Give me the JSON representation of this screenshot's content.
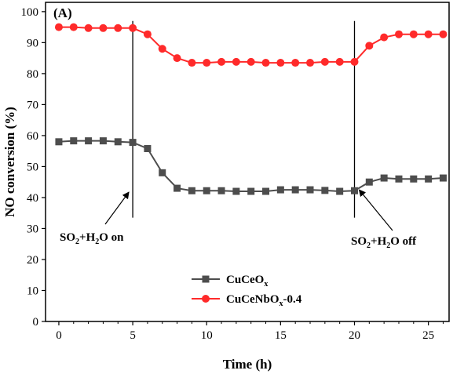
{
  "chart_data": {
    "type": "line",
    "panel_label": "(A)",
    "xlabel": "Time (h)",
    "ylabel": "NO conversion (%)",
    "xlim": [
      -0.9,
      26.4
    ],
    "ylim": [
      0,
      103
    ],
    "xticks": [
      0,
      5,
      10,
      15,
      20,
      25
    ],
    "yticks": [
      0,
      10,
      20,
      30,
      40,
      50,
      60,
      70,
      80,
      90,
      100
    ],
    "grid": false,
    "legend_position": "bottom-center",
    "series": [
      {
        "name": "CuCeOx",
        "legend_main": "CuCeO",
        "legend_sub": "x",
        "legend_suffix": "",
        "marker": "square",
        "color": "#4d4d4d",
        "x": [
          0,
          1,
          2,
          3,
          4,
          5,
          6,
          7,
          8,
          9,
          10,
          11,
          12,
          13,
          14,
          15,
          16,
          17,
          18,
          19,
          20,
          21,
          22,
          23,
          24,
          25,
          26
        ],
        "y": [
          58,
          58.3,
          58.3,
          58.3,
          58,
          57.8,
          55.8,
          48,
          43,
          42.2,
          42.2,
          42.2,
          42,
          42,
          42,
          42.5,
          42.5,
          42.5,
          42.3,
          42,
          42.2,
          45,
          46.3,
          46,
          46,
          46,
          46.3
        ]
      },
      {
        "name": "CuCeNbOx-0.4",
        "legend_main": "CuCeNbO",
        "legend_sub": "x",
        "legend_suffix": "-0.4",
        "marker": "circle",
        "color": "#ff2a2a",
        "x": [
          0,
          1,
          2,
          3,
          4,
          5,
          6,
          7,
          8,
          9,
          10,
          11,
          12,
          13,
          14,
          15,
          16,
          17,
          18,
          19,
          20,
          21,
          22,
          23,
          24,
          25,
          26
        ],
        "y": [
          95,
          95,
          94.7,
          94.7,
          94.7,
          94.7,
          92.7,
          88,
          85,
          83.5,
          83.5,
          83.8,
          83.8,
          83.8,
          83.5,
          83.5,
          83.5,
          83.5,
          83.8,
          83.8,
          83.8,
          89,
          91.7,
          92.7,
          92.7,
          92.7,
          92.7
        ]
      }
    ],
    "vlines": [
      5,
      20
    ],
    "annotations": [
      {
        "parts": [
          "SO",
          "2",
          "+H",
          "2",
          "O on"
        ],
        "point_x": 5,
        "point_y": 42.5
      },
      {
        "parts": [
          "SO",
          "2",
          "+H",
          "2",
          "O off"
        ],
        "point_x": 20,
        "point_y": 43
      }
    ]
  }
}
